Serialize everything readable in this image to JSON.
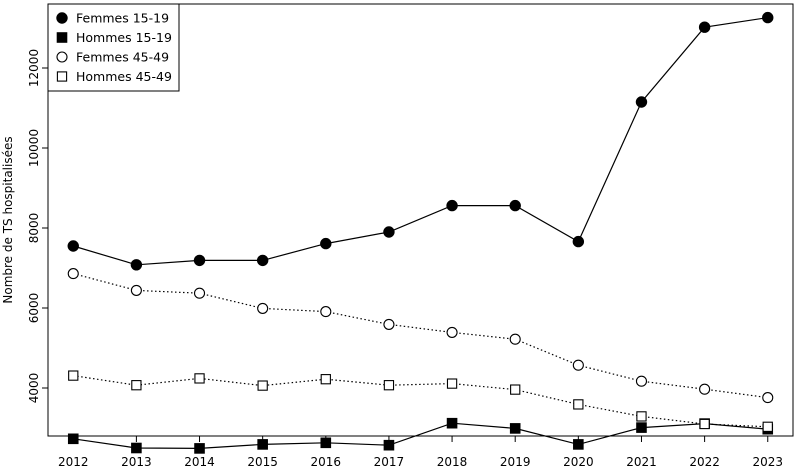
{
  "chart_data": {
    "type": "line",
    "title": "",
    "xlabel": "",
    "ylabel": "Nombre de TS hospitalisées",
    "x": [
      2012,
      2013,
      2014,
      2015,
      2016,
      2017,
      2018,
      2019,
      2020,
      2021,
      2022,
      2023
    ],
    "xlim": [
      2011.6,
      2023.4
    ],
    "ylim": [
      2800,
      13600
    ],
    "yticks": [
      4000,
      6000,
      8000,
      10000,
      12000
    ],
    "grid": false,
    "legend": {
      "placement": "top-left"
    },
    "series": [
      {
        "name": "Femmes  15-19",
        "marker": "filled-circle",
        "line": "solid",
        "values": [
          7550,
          7080,
          7190,
          7190,
          7610,
          7900,
          8560,
          8560,
          7660,
          11150,
          13020,
          13260
        ]
      },
      {
        "name": "Hommes  15-19",
        "marker": "filled-square",
        "line": "solid",
        "values": [
          2730,
          2500,
          2490,
          2590,
          2630,
          2570,
          3120,
          2990,
          2590,
          3010,
          3110,
          2970
        ]
      },
      {
        "name": "Femmes  45-49",
        "marker": "open-circle",
        "line": "dotted",
        "values": [
          6860,
          6440,
          6370,
          5990,
          5910,
          5590,
          5390,
          5220,
          4570,
          4170,
          3970,
          3760
        ]
      },
      {
        "name": "Hommes  45-49",
        "marker": "open-square",
        "line": "dotted",
        "values": [
          4310,
          4070,
          4240,
          4060,
          4220,
          4070,
          4110,
          3960,
          3590,
          3290,
          3100,
          3030
        ]
      }
    ]
  }
}
